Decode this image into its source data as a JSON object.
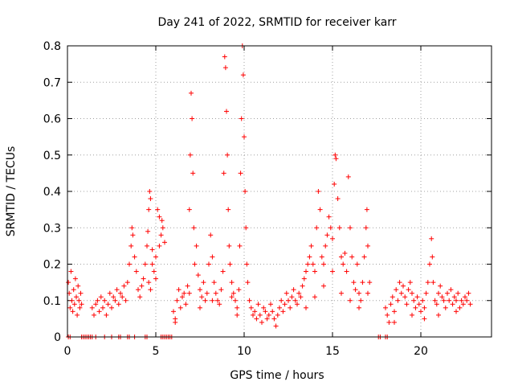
{
  "chart_data": {
    "type": "scatter",
    "title": "Day 241 of 2022, SRMTID for receiver karr",
    "xlabel": "GPS time / hours",
    "ylabel": "SRMTID / TECUs",
    "xlim": [
      0,
      24
    ],
    "ylim": [
      0,
      0.8
    ],
    "xticks": [
      0,
      5,
      10,
      15,
      20
    ],
    "xtick_labels": [
      "0",
      "5",
      "10",
      "15",
      "20"
    ],
    "yticks": [
      0,
      0.1,
      0.2,
      0.3,
      0.4,
      0.5,
      0.6,
      0.7,
      0.8
    ],
    "ytick_labels": [
      "0",
      "0.1",
      "0.2",
      "0.3",
      "0.4",
      "0.5",
      "0.6",
      "0.7",
      "0.8"
    ],
    "grid": true,
    "marker": "+",
    "color": "#ff0000",
    "series": [
      {
        "name": "SRMTID",
        "points": [
          [
            0.05,
            0.15
          ],
          [
            0.1,
            0.12
          ],
          [
            0.15,
            0.08
          ],
          [
            0.2,
            0.18
          ],
          [
            0.25,
            0.1
          ],
          [
            0.3,
            0.07
          ],
          [
            0.35,
            0.13
          ],
          [
            0.4,
            0.09
          ],
          [
            0.45,
            0.16
          ],
          [
            0.5,
            0.11
          ],
          [
            0.55,
            0.06
          ],
          [
            0.6,
            0.14
          ],
          [
            0.65,
            0.1
          ],
          [
            0.7,
            0.08
          ],
          [
            0.75,
            0.12
          ],
          [
            0.8,
            0.09
          ],
          [
            0.05,
            0
          ],
          [
            0.15,
            0
          ],
          [
            0.8,
            0
          ],
          [
            0.9,
            0
          ],
          [
            1.0,
            0
          ],
          [
            1.1,
            0
          ],
          [
            1.2,
            0
          ],
          [
            1.3,
            0
          ],
          [
            1.4,
            0
          ],
          [
            1.4,
            0.08
          ],
          [
            1.5,
            0.06
          ],
          [
            1.6,
            0.09
          ],
          [
            1.7,
            0.1
          ],
          [
            1.8,
            0.07
          ],
          [
            1.9,
            0.11
          ],
          [
            2.0,
            0.08
          ],
          [
            2.1,
            0.1
          ],
          [
            2.2,
            0.06
          ],
          [
            2.3,
            0.09
          ],
          [
            2.4,
            0.12
          ],
          [
            2.5,
            0.08
          ],
          [
            2.6,
            0.11
          ],
          [
            2.7,
            0.1
          ],
          [
            2.8,
            0.13
          ],
          [
            2.9,
            0.09
          ],
          [
            3.0,
            0.12
          ],
          [
            3.1,
            0.11
          ],
          [
            3.2,
            0.14
          ],
          [
            1.6,
            0
          ],
          [
            2.1,
            0
          ],
          [
            2.5,
            0
          ],
          [
            2.9,
            0
          ],
          [
            3.0,
            0
          ],
          [
            3.4,
            0
          ],
          [
            3.5,
            0
          ],
          [
            3.8,
            0
          ],
          [
            4.4,
            0
          ],
          [
            4.5,
            0
          ],
          [
            3.3,
            0.1
          ],
          [
            3.4,
            0.15
          ],
          [
            3.5,
            0.2
          ],
          [
            3.6,
            0.25
          ],
          [
            3.65,
            0.3
          ],
          [
            3.7,
            0.28
          ],
          [
            3.8,
            0.22
          ],
          [
            3.9,
            0.18
          ],
          [
            4.0,
            0.13
          ],
          [
            4.1,
            0.11
          ],
          [
            4.2,
            0.14
          ],
          [
            4.3,
            0.16
          ],
          [
            4.4,
            0.2
          ],
          [
            4.5,
            0.25
          ],
          [
            4.55,
            0.29
          ],
          [
            4.6,
            0.35
          ],
          [
            4.65,
            0.4
          ],
          [
            4.7,
            0.38
          ],
          [
            4.8,
            0.24
          ],
          [
            4.9,
            0.18
          ],
          [
            5.0,
            0.22
          ],
          [
            5.1,
            0.35
          ],
          [
            5.2,
            0.33
          ],
          [
            5.3,
            0.28
          ],
          [
            5.4,
            0.3
          ],
          [
            5.5,
            0.26
          ],
          [
            4.6,
            0.15
          ],
          [
            4.7,
            0.13
          ],
          [
            4.8,
            0.2
          ],
          [
            5.0,
            0.16
          ],
          [
            5.2,
            0.25
          ],
          [
            5.35,
            0.32
          ],
          [
            5.3,
            0
          ],
          [
            5.4,
            0
          ],
          [
            5.5,
            0
          ],
          [
            5.6,
            0
          ],
          [
            5.7,
            0
          ],
          [
            5.8,
            0
          ],
          [
            5.9,
            0
          ],
          [
            6.0,
            0.07
          ],
          [
            6.1,
            0.05
          ],
          [
            6.2,
            0.1
          ],
          [
            6.3,
            0.13
          ],
          [
            6.4,
            0.08
          ],
          [
            6.5,
            0.11
          ],
          [
            6.6,
            0.12
          ],
          [
            6.7,
            0.09
          ],
          [
            6.8,
            0.14
          ],
          [
            6.9,
            0.35
          ],
          [
            6.95,
            0.5
          ],
          [
            7.0,
            0.67
          ],
          [
            7.05,
            0.6
          ],
          [
            7.1,
            0.45
          ],
          [
            7.15,
            0.3
          ],
          [
            7.2,
            0.2
          ],
          [
            7.3,
            0.25
          ],
          [
            7.4,
            0.17
          ],
          [
            7.5,
            0.13
          ],
          [
            7.6,
            0.11
          ],
          [
            7.7,
            0.15
          ],
          [
            7.8,
            0.1
          ],
          [
            7.9,
            0.12
          ],
          [
            8.0,
            0.2
          ],
          [
            8.1,
            0.28
          ],
          [
            8.2,
            0.22
          ],
          [
            8.3,
            0.15
          ],
          [
            8.4,
            0.12
          ],
          [
            8.5,
            0.1
          ],
          [
            8.6,
            0.09
          ],
          [
            8.7,
            0.13
          ],
          [
            8.8,
            0.18
          ],
          [
            8.85,
            0.45
          ],
          [
            8.9,
            0.77
          ],
          [
            8.95,
            0.74
          ],
          [
            9.0,
            0.62
          ],
          [
            9.05,
            0.5
          ],
          [
            9.1,
            0.35
          ],
          [
            9.15,
            0.25
          ],
          [
            9.2,
            0.2
          ],
          [
            9.3,
            0.15
          ],
          [
            9.4,
            0.12
          ],
          [
            9.5,
            0.1
          ],
          [
            9.6,
            0.08
          ],
          [
            9.7,
            0.13
          ],
          [
            9.75,
            0.25
          ],
          [
            9.8,
            0.45
          ],
          [
            9.85,
            0.6
          ],
          [
            9.9,
            0.8
          ],
          [
            9.95,
            0.72
          ],
          [
            10.0,
            0.55
          ],
          [
            10.05,
            0.4
          ],
          [
            10.1,
            0.3
          ],
          [
            10.15,
            0.2
          ],
          [
            10.2,
            0.15
          ],
          [
            6.1,
            0.04
          ],
          [
            6.9,
            0.12
          ],
          [
            7.5,
            0.08
          ],
          [
            8.2,
            0.1
          ],
          [
            9.3,
            0.11
          ],
          [
            9.6,
            0.06
          ],
          [
            10.3,
            0.1
          ],
          [
            10.4,
            0.08
          ],
          [
            10.5,
            0.06
          ],
          [
            10.6,
            0.07
          ],
          [
            10.7,
            0.05
          ],
          [
            10.8,
            0.09
          ],
          [
            10.9,
            0.06
          ],
          [
            11.0,
            0.04
          ],
          [
            11.1,
            0.08
          ],
          [
            11.2,
            0.07
          ],
          [
            11.3,
            0.05
          ],
          [
            11.4,
            0.06
          ],
          [
            11.5,
            0.09
          ],
          [
            11.6,
            0.07
          ],
          [
            11.7,
            0.05
          ],
          [
            11.8,
            0.03
          ],
          [
            11.9,
            0.06
          ],
          [
            12.0,
            0.08
          ],
          [
            12.1,
            0.1
          ],
          [
            12.2,
            0.07
          ],
          [
            12.3,
            0.09
          ],
          [
            12.4,
            0.12
          ],
          [
            12.5,
            0.1
          ],
          [
            12.6,
            0.08
          ],
          [
            12.7,
            0.11
          ],
          [
            12.8,
            0.13
          ],
          [
            12.9,
            0.1
          ],
          [
            13.0,
            0.09
          ],
          [
            13.1,
            0.12
          ],
          [
            13.2,
            0.11
          ],
          [
            13.3,
            0.14
          ],
          [
            13.4,
            0.16
          ],
          [
            13.5,
            0.18
          ],
          [
            13.6,
            0.2
          ],
          [
            13.7,
            0.22
          ],
          [
            13.8,
            0.25
          ],
          [
            13.9,
            0.2
          ],
          [
            14.0,
            0.18
          ],
          [
            14.1,
            0.3
          ],
          [
            14.2,
            0.4
          ],
          [
            14.3,
            0.35
          ],
          [
            14.4,
            0.22
          ],
          [
            14.5,
            0.2
          ],
          [
            14.6,
            0.25
          ],
          [
            14.7,
            0.28
          ],
          [
            14.8,
            0.33
          ],
          [
            14.9,
            0.3
          ],
          [
            15.0,
            0.27
          ],
          [
            15.1,
            0.42
          ],
          [
            15.15,
            0.5
          ],
          [
            15.2,
            0.49
          ],
          [
            15.3,
            0.38
          ],
          [
            15.4,
            0.3
          ],
          [
            15.5,
            0.22
          ],
          [
            15.6,
            0.2
          ],
          [
            15.7,
            0.23
          ],
          [
            15.8,
            0.18
          ],
          [
            15.9,
            0.44
          ],
          [
            16.0,
            0.3
          ],
          [
            16.1,
            0.22
          ],
          [
            16.2,
            0.15
          ],
          [
            16.3,
            0.13
          ],
          [
            16.4,
            0.2
          ],
          [
            16.5,
            0.12
          ],
          [
            16.6,
            0.1
          ],
          [
            16.7,
            0.15
          ],
          [
            16.8,
            0.22
          ],
          [
            16.9,
            0.3
          ],
          [
            16.95,
            0.35
          ],
          [
            17.0,
            0.25
          ],
          [
            17.1,
            0.15
          ],
          [
            13.5,
            0.08
          ],
          [
            14.0,
            0.11
          ],
          [
            14.5,
            0.14
          ],
          [
            15.0,
            0.18
          ],
          [
            15.5,
            0.12
          ],
          [
            16.0,
            0.1
          ],
          [
            16.5,
            0.08
          ],
          [
            17.0,
            0.12
          ],
          [
            17.6,
            0
          ],
          [
            17.7,
            0
          ],
          [
            18.0,
            0
          ],
          [
            18.1,
            0
          ],
          [
            18.0,
            0.08
          ],
          [
            18.1,
            0.06
          ],
          [
            18.2,
            0.04
          ],
          [
            18.3,
            0.09
          ],
          [
            18.4,
            0.11
          ],
          [
            18.5,
            0.07
          ],
          [
            18.6,
            0.13
          ],
          [
            18.7,
            0.1
          ],
          [
            18.8,
            0.15
          ],
          [
            18.9,
            0.12
          ],
          [
            19.0,
            0.14
          ],
          [
            19.1,
            0.11
          ],
          [
            19.2,
            0.09
          ],
          [
            19.3,
            0.13
          ],
          [
            19.4,
            0.15
          ],
          [
            19.5,
            0.12
          ],
          [
            19.6,
            0.1
          ],
          [
            19.7,
            0.08
          ],
          [
            19.8,
            0.11
          ],
          [
            19.9,
            0.09
          ],
          [
            20.0,
            0.07
          ],
          [
            20.1,
            0.1
          ],
          [
            20.2,
            0.08
          ],
          [
            20.3,
            0.12
          ],
          [
            20.4,
            0.15
          ],
          [
            20.5,
            0.2
          ],
          [
            20.6,
            0.27
          ],
          [
            20.65,
            0.22
          ],
          [
            20.7,
            0.15
          ],
          [
            20.8,
            0.1
          ],
          [
            20.9,
            0.09
          ],
          [
            21.0,
            0.12
          ],
          [
            21.1,
            0.14
          ],
          [
            21.2,
            0.11
          ],
          [
            21.3,
            0.1
          ],
          [
            21.4,
            0.08
          ],
          [
            21.5,
            0.12
          ],
          [
            21.6,
            0.1
          ],
          [
            21.7,
            0.13
          ],
          [
            21.8,
            0.09
          ],
          [
            21.9,
            0.11
          ],
          [
            22.0,
            0.1
          ],
          [
            22.1,
            0.12
          ],
          [
            22.2,
            0.08
          ],
          [
            22.3,
            0.1
          ],
          [
            22.4,
            0.09
          ],
          [
            22.5,
            0.11
          ],
          [
            22.6,
            0.1
          ],
          [
            22.7,
            0.12
          ],
          [
            22.8,
            0.09
          ],
          [
            18.5,
            0.04
          ],
          [
            19.5,
            0.06
          ],
          [
            20.2,
            0.05
          ],
          [
            21.0,
            0.06
          ],
          [
            22.0,
            0.07
          ]
        ]
      }
    ]
  }
}
